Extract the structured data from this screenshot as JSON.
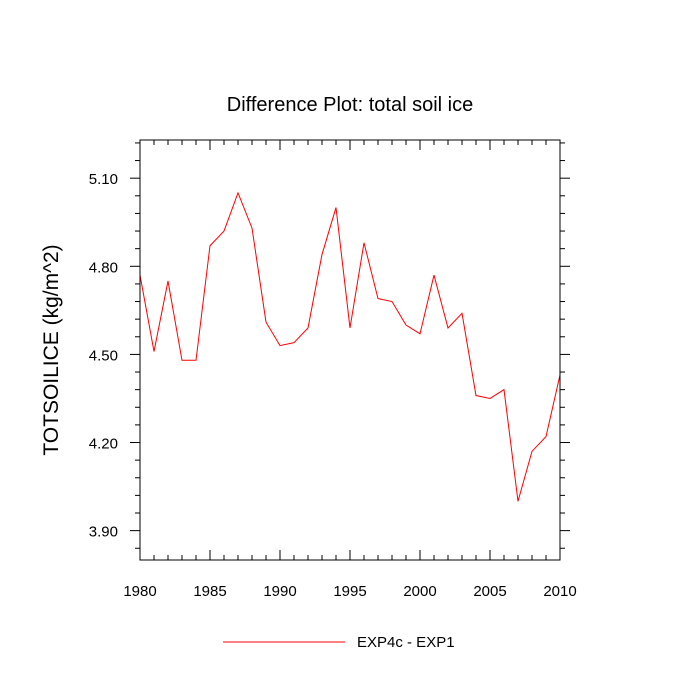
{
  "chart_data": {
    "type": "line",
    "title": "Difference Plot: total soil ice",
    "xlabel": "",
    "ylabel": "TOTSOILICE  (kg/m^2)",
    "xlim": [
      1980,
      2010
    ],
    "ylim": [
      3.8,
      5.23
    ],
    "x_ticks": [
      1980,
      1985,
      1990,
      1995,
      2000,
      2005,
      2010
    ],
    "x_tick_labels": [
      "1980",
      "1985",
      "1990",
      "1995",
      "2000",
      "2005",
      "2010"
    ],
    "y_ticks": [
      3.9,
      4.2,
      4.5,
      4.8,
      5.1
    ],
    "y_tick_labels": [
      "3.90",
      "4.20",
      "4.50",
      "4.80",
      "5.10"
    ],
    "grid": false,
    "legend_position": "bottom-center",
    "x": [
      1980,
      1981,
      1982,
      1983,
      1984,
      1985,
      1986,
      1987,
      1988,
      1989,
      1990,
      1991,
      1992,
      1993,
      1994,
      1995,
      1996,
      1997,
      1998,
      1999,
      2000,
      2001,
      2002,
      2003,
      2004,
      2005,
      2006,
      2007,
      2008,
      2009,
      2010
    ],
    "series": [
      {
        "name": "EXP4c - EXP1",
        "color": "#ff0000",
        "values": [
          4.77,
          4.51,
          4.75,
          4.48,
          4.48,
          4.87,
          4.92,
          5.05,
          4.93,
          4.61,
          4.53,
          4.54,
          4.59,
          4.84,
          5.0,
          4.59,
          4.88,
          4.69,
          4.68,
          4.6,
          4.57,
          4.77,
          4.59,
          4.64,
          4.36,
          4.35,
          4.38,
          4.0,
          4.17,
          4.22,
          4.43
        ]
      }
    ]
  }
}
